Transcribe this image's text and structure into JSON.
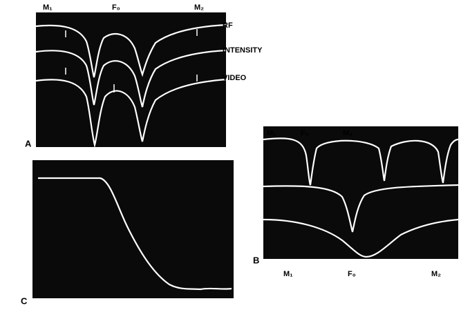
{
  "panel_a": {
    "label": "A",
    "top_labels": [
      "M₁",
      "F₀",
      "M₂"
    ],
    "trace_labels": [
      "RF",
      "INTENSITY",
      "VIDEO"
    ]
  },
  "panel_b": {
    "label": "B",
    "top_labels": [
      "M₁",
      "F₀",
      "M₂"
    ],
    "bottom_labels": [
      "M₁",
      "F₀",
      "M₂"
    ]
  },
  "panel_c": {
    "label": "C"
  }
}
